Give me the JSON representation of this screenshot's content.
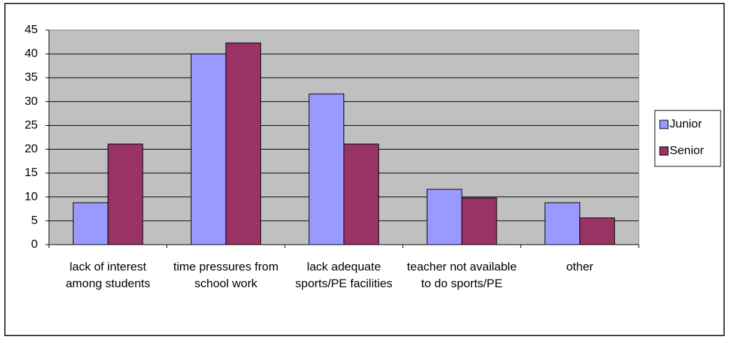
{
  "chart_data": {
    "type": "bar",
    "categories": [
      "lack of interest among students",
      "time pressures from school work",
      "lack adequate sports/PE facilities",
      "teacher not available to do sports/PE",
      "other"
    ],
    "series": [
      {
        "name": "Junior",
        "color": "#9999ff",
        "values": [
          8.8,
          40.0,
          31.6,
          11.6,
          8.8
        ]
      },
      {
        "name": "Senior",
        "color": "#993366",
        "values": [
          21.1,
          42.3,
          21.1,
          9.8,
          5.6
        ]
      }
    ],
    "ylim": [
      0,
      45
    ],
    "yticks": [
      0,
      5,
      10,
      15,
      20,
      25,
      30,
      35,
      40,
      45
    ],
    "grid": true,
    "legend": "right"
  }
}
